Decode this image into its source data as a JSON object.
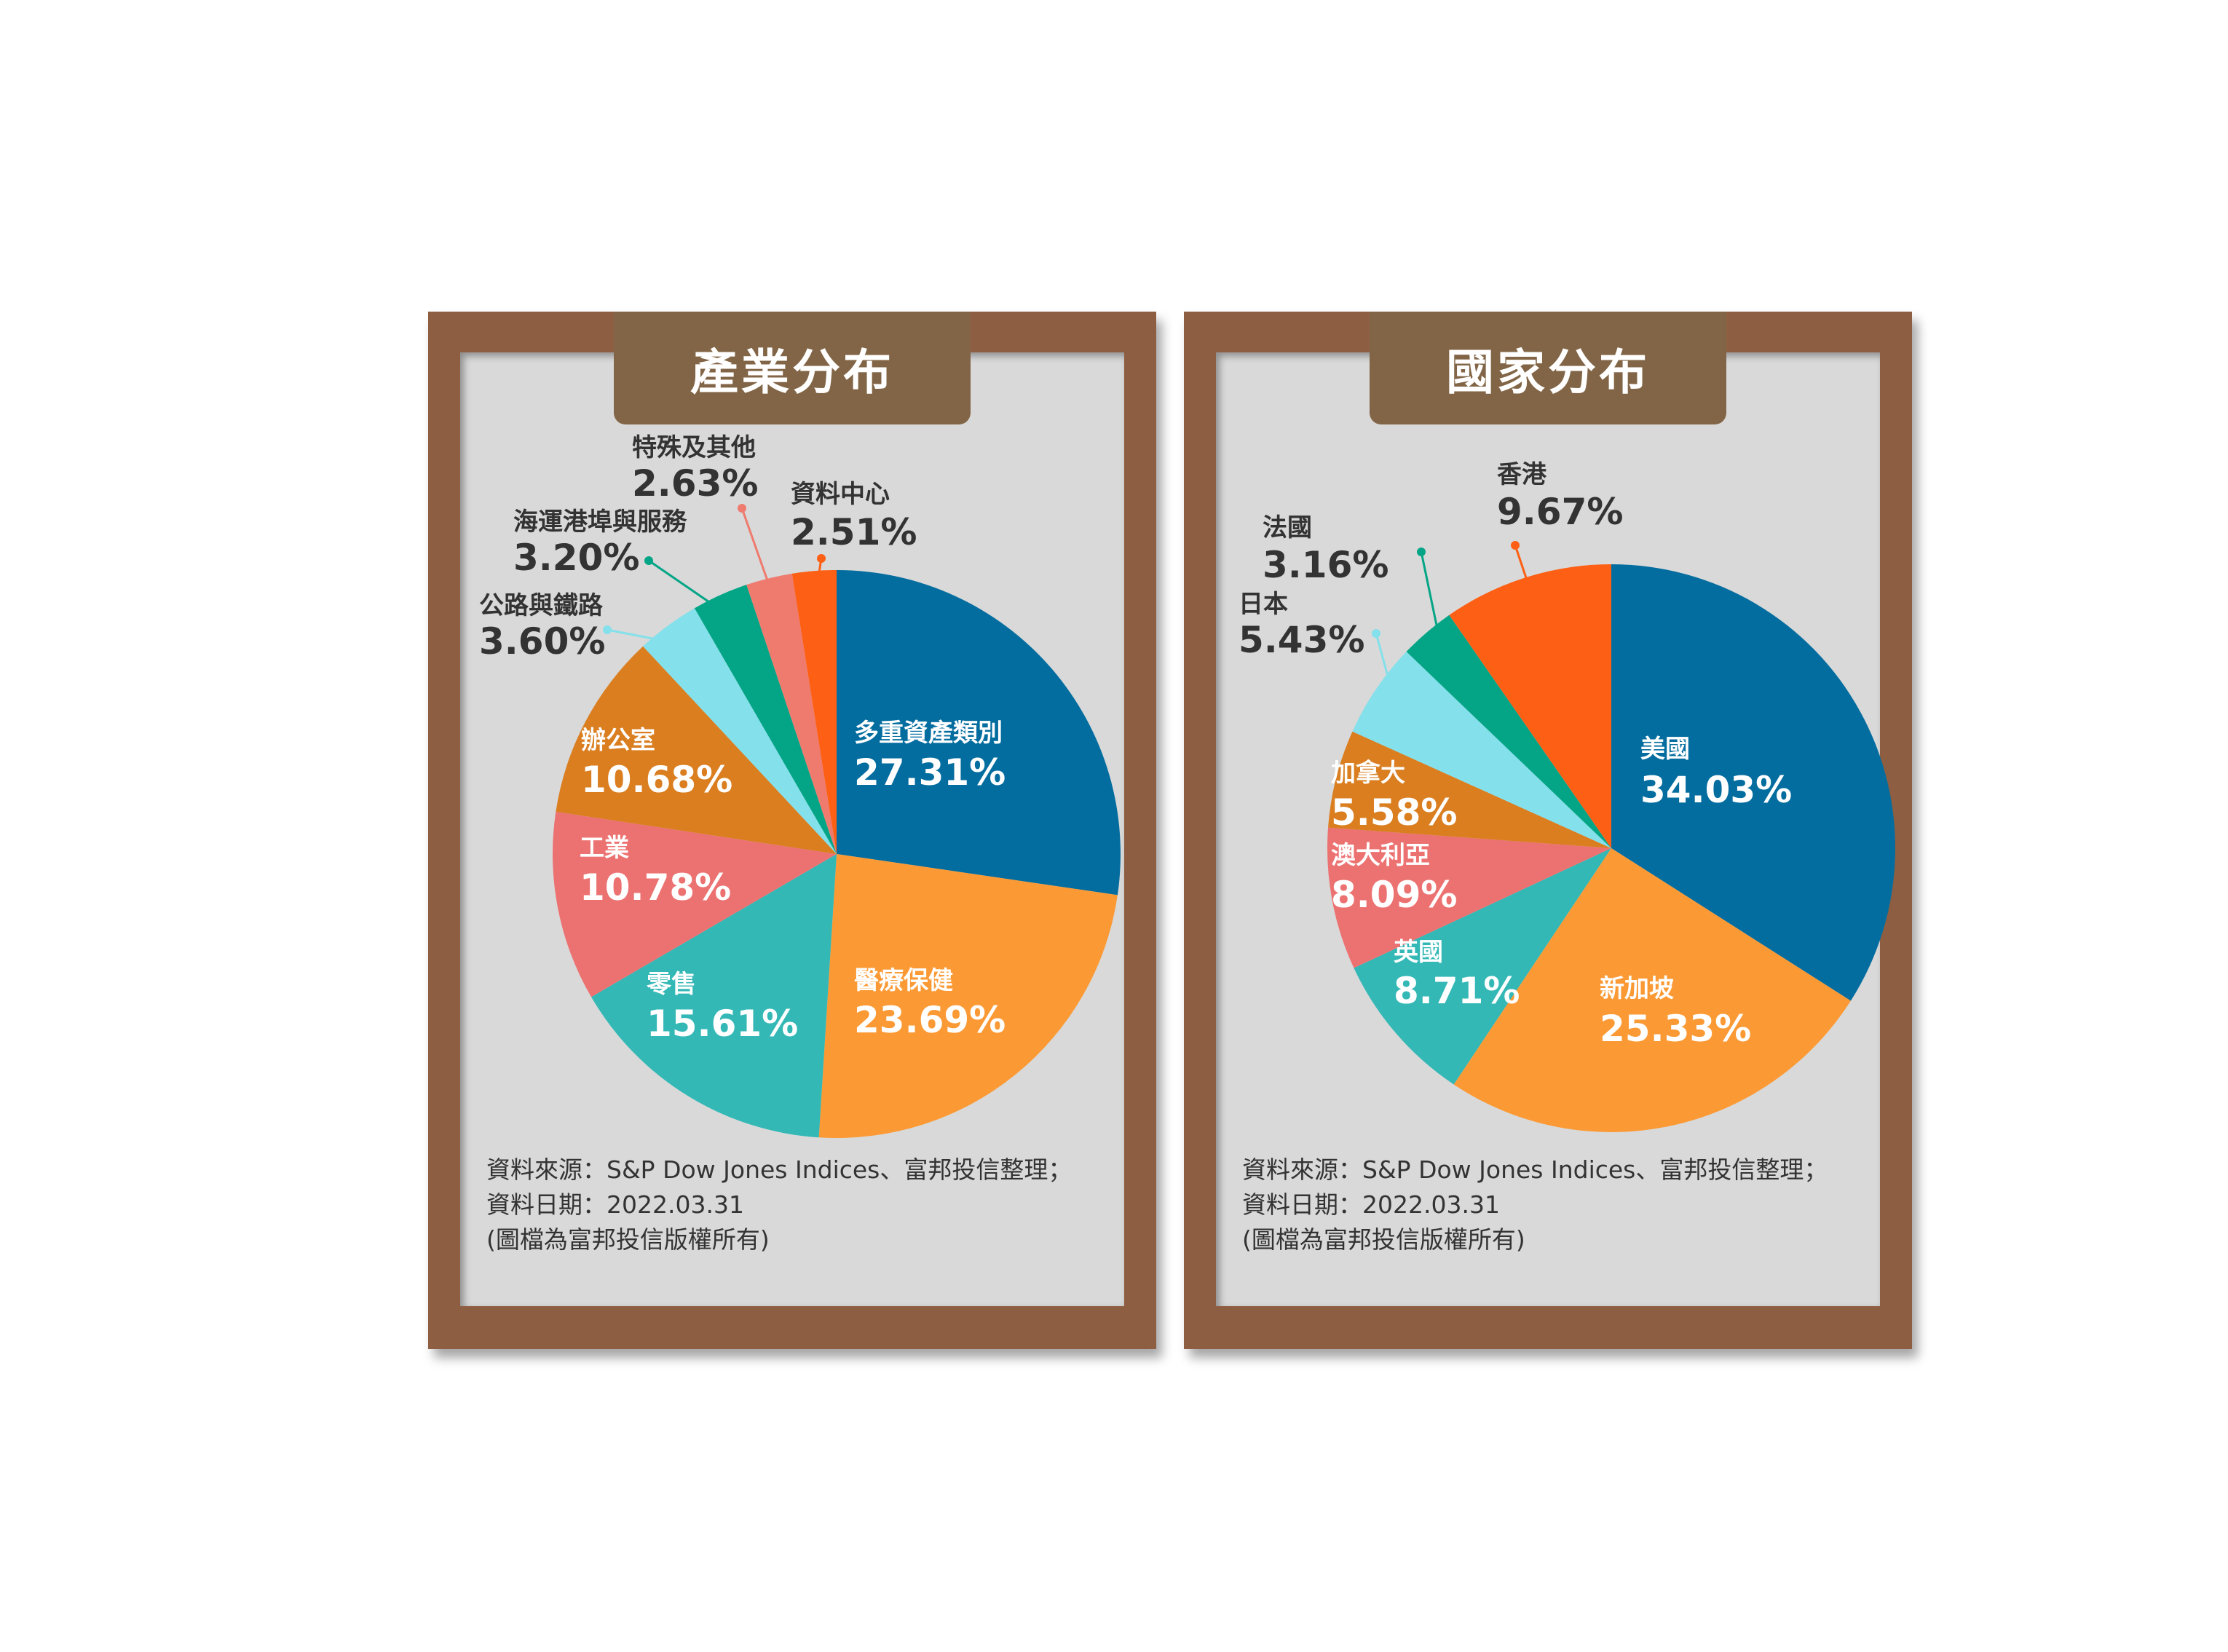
{
  "colors": {
    "frame": "#8e5e42",
    "tab": "#826546",
    "board": "#d9d9d9",
    "label_dark": "#333333",
    "label_light": "#ffffff"
  },
  "panels": [
    {
      "title": "產業分布",
      "footnote": {
        "line1": "資料來源：S&P Dow Jones Indices、富邦投信整理；",
        "line2": "資料日期：2022.03.31",
        "line3": "(圖檔為富邦投信版權所有)"
      }
    },
    {
      "title": "國家分布",
      "footnote": {
        "line1": "資料來源：S&P Dow Jones Indices、富邦投信整理；",
        "line2": "資料日期：2022.03.31",
        "line3": "(圖檔為富邦投信版權所有)"
      }
    }
  ],
  "chart_data": [
    {
      "type": "pie",
      "title": "產業分布",
      "start": "12 o'clock, clockwise",
      "slices": [
        {
          "name": "多重資產類別",
          "label": "27.31%",
          "value": 27.31,
          "color": "#046d9f"
        },
        {
          "name": "醫療保健",
          "label": "23.69%",
          "value": 23.69,
          "color": "#fb9a35"
        },
        {
          "name": "零售",
          "label": "15.61%",
          "value": 15.61,
          "color": "#33b8b6"
        },
        {
          "name": "工業",
          "label": "10.78%",
          "value": 10.78,
          "color": "#ec7271"
        },
        {
          "name": "辦公室",
          "label": "10.68%",
          "value": 10.68,
          "color": "#da7e20"
        },
        {
          "name": "公路與鐵路",
          "label": "3.60%",
          "value": 3.6,
          "color": "#84e0ea"
        },
        {
          "name": "海運港埠與服務",
          "label": "3.20%",
          "value": 3.2,
          "color": "#04a586"
        },
        {
          "name": "特殊及其他",
          "label": "2.63%",
          "value": 2.63,
          "color": "#ee7b6e"
        },
        {
          "name": "資料中心",
          "label": "2.51%",
          "value": 2.51,
          "color": "#fd5f14"
        }
      ]
    },
    {
      "type": "pie",
      "title": "國家分布",
      "start": "12 o'clock, clockwise",
      "slices": [
        {
          "name": "美國",
          "label": "34.03%",
          "value": 34.03,
          "color": "#046d9f"
        },
        {
          "name": "新加坡",
          "label": "25.33%",
          "value": 25.33,
          "color": "#fb9a35"
        },
        {
          "name": "英國",
          "label": "8.71%",
          "value": 8.71,
          "color": "#33b8b6"
        },
        {
          "name": "澳大利亞",
          "label": "8.09%",
          "value": 8.09,
          "color": "#ec7271"
        },
        {
          "name": "加拿大",
          "label": "5.58%",
          "value": 5.58,
          "color": "#da7e20"
        },
        {
          "name": "日本",
          "label": "5.43%",
          "value": 5.43,
          "color": "#84e0ea"
        },
        {
          "name": "法國",
          "label": "3.16%",
          "value": 3.16,
          "color": "#04a586"
        },
        {
          "name": "香港",
          "label": "9.67%",
          "value": 9.67,
          "color": "#fd5f14"
        }
      ]
    }
  ]
}
